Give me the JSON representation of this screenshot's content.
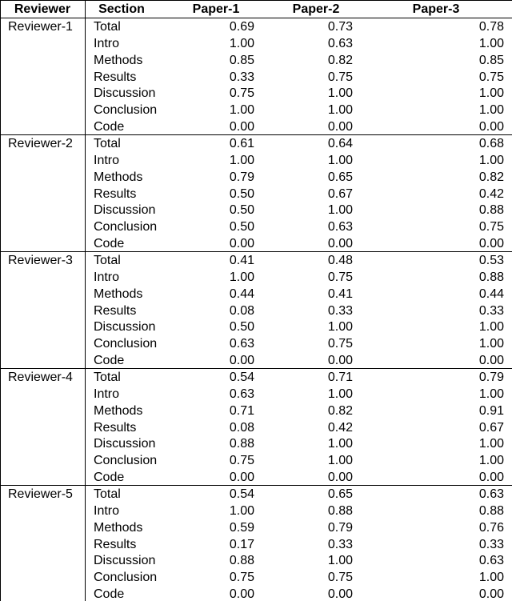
{
  "table": {
    "header": [
      "Reviewer",
      "Section",
      "Paper-1",
      "Paper-2",
      "Paper-3"
    ],
    "groups": [
      {
        "reviewer": "Reviewer-1",
        "rows": [
          [
            "Total",
            "0.69",
            "0.73",
            "0.78"
          ],
          [
            "Intro",
            "1.00",
            "0.63",
            "1.00"
          ],
          [
            "Methods",
            "0.85",
            "0.82",
            "0.85"
          ],
          [
            "Results",
            "0.33",
            "0.75",
            "0.75"
          ],
          [
            "Discussion",
            "0.75",
            "1.00",
            "1.00"
          ],
          [
            "Conclusion",
            "1.00",
            "1.00",
            "1.00"
          ],
          [
            "Code",
            "0.00",
            "0.00",
            "0.00"
          ]
        ]
      },
      {
        "reviewer": "Reviewer-2",
        "rows": [
          [
            "Total",
            "0.61",
            "0.64",
            "0.68"
          ],
          [
            "Intro",
            "1.00",
            "1.00",
            "1.00"
          ],
          [
            "Methods",
            "0.79",
            "0.65",
            "0.82"
          ],
          [
            "Results",
            "0.50",
            "0.67",
            "0.42"
          ],
          [
            "Discussion",
            "0.50",
            "1.00",
            "0.88"
          ],
          [
            "Conclusion",
            "0.50",
            "0.63",
            "0.75"
          ],
          [
            "Code",
            "0.00",
            "0.00",
            "0.00"
          ]
        ]
      },
      {
        "reviewer": "Reviewer-3",
        "rows": [
          [
            "Total",
            "0.41",
            "0.48",
            "0.53"
          ],
          [
            "Intro",
            "1.00",
            "0.75",
            "0.88"
          ],
          [
            "Methods",
            "0.44",
            "0.41",
            "0.44"
          ],
          [
            "Results",
            "0.08",
            "0.33",
            "0.33"
          ],
          [
            "Discussion",
            "0.50",
            "1.00",
            "1.00"
          ],
          [
            "Conclusion",
            "0.63",
            "0.75",
            "1.00"
          ],
          [
            "Code",
            "0.00",
            "0.00",
            "0.00"
          ]
        ]
      },
      {
        "reviewer": "Reviewer-4",
        "rows": [
          [
            "Total",
            "0.54",
            "0.71",
            "0.79"
          ],
          [
            "Intro",
            "0.63",
            "1.00",
            "1.00"
          ],
          [
            "Methods",
            "0.71",
            "0.82",
            "0.91"
          ],
          [
            "Results",
            "0.08",
            "0.42",
            "0.67"
          ],
          [
            "Discussion",
            "0.88",
            "1.00",
            "1.00"
          ],
          [
            "Conclusion",
            "0.75",
            "1.00",
            "1.00"
          ],
          [
            "Code",
            "0.00",
            "0.00",
            "0.00"
          ]
        ]
      },
      {
        "reviewer": "Reviewer-5",
        "rows": [
          [
            "Total",
            "0.54",
            "0.65",
            "0.63"
          ],
          [
            "Intro",
            "1.00",
            "0.88",
            "0.88"
          ],
          [
            "Methods",
            "0.59",
            "0.79",
            "0.76"
          ],
          [
            "Results",
            "0.17",
            "0.33",
            "0.33"
          ],
          [
            "Discussion",
            "0.88",
            "1.00",
            "0.63"
          ],
          [
            "Conclusion",
            "0.75",
            "0.75",
            "1.00"
          ],
          [
            "Code",
            "0.00",
            "0.00",
            "0.00"
          ]
        ]
      }
    ]
  }
}
